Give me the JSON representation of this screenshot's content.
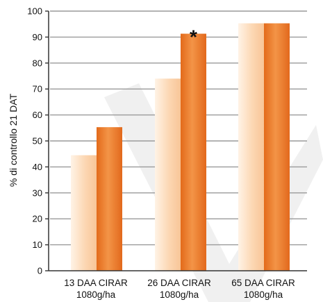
{
  "chart_data": {
    "type": "bar",
    "ylabel": "% di controllo 21 DAT",
    "ylim": [
      0,
      100
    ],
    "yticks": [
      "0",
      "10",
      "20",
      "30",
      "40",
      "50",
      "60",
      "70",
      "80",
      "90",
      "100"
    ],
    "categories": [
      [
        "13 DAA CIRAR",
        "1080g/ha"
      ],
      [
        "26 DAA CIRAR",
        "1080g/ha"
      ],
      [
        "65 DAA CIRAR",
        "1080g/ha"
      ]
    ],
    "series": [
      {
        "values": [
          44.5,
          74,
          95.3
        ],
        "color": "#fcd3ad"
      },
      {
        "values": [
          55.3,
          91.3,
          95.3
        ],
        "color": "#f0853a"
      }
    ],
    "annotations": [
      {
        "text": "*",
        "category": 1,
        "series": 1
      }
    ],
    "grid": true,
    "legend": "none",
    "watermark": true,
    "colors": {
      "grid": "#9a9a9a",
      "axis": "#333333",
      "watermark": "#f0f0f0"
    }
  }
}
